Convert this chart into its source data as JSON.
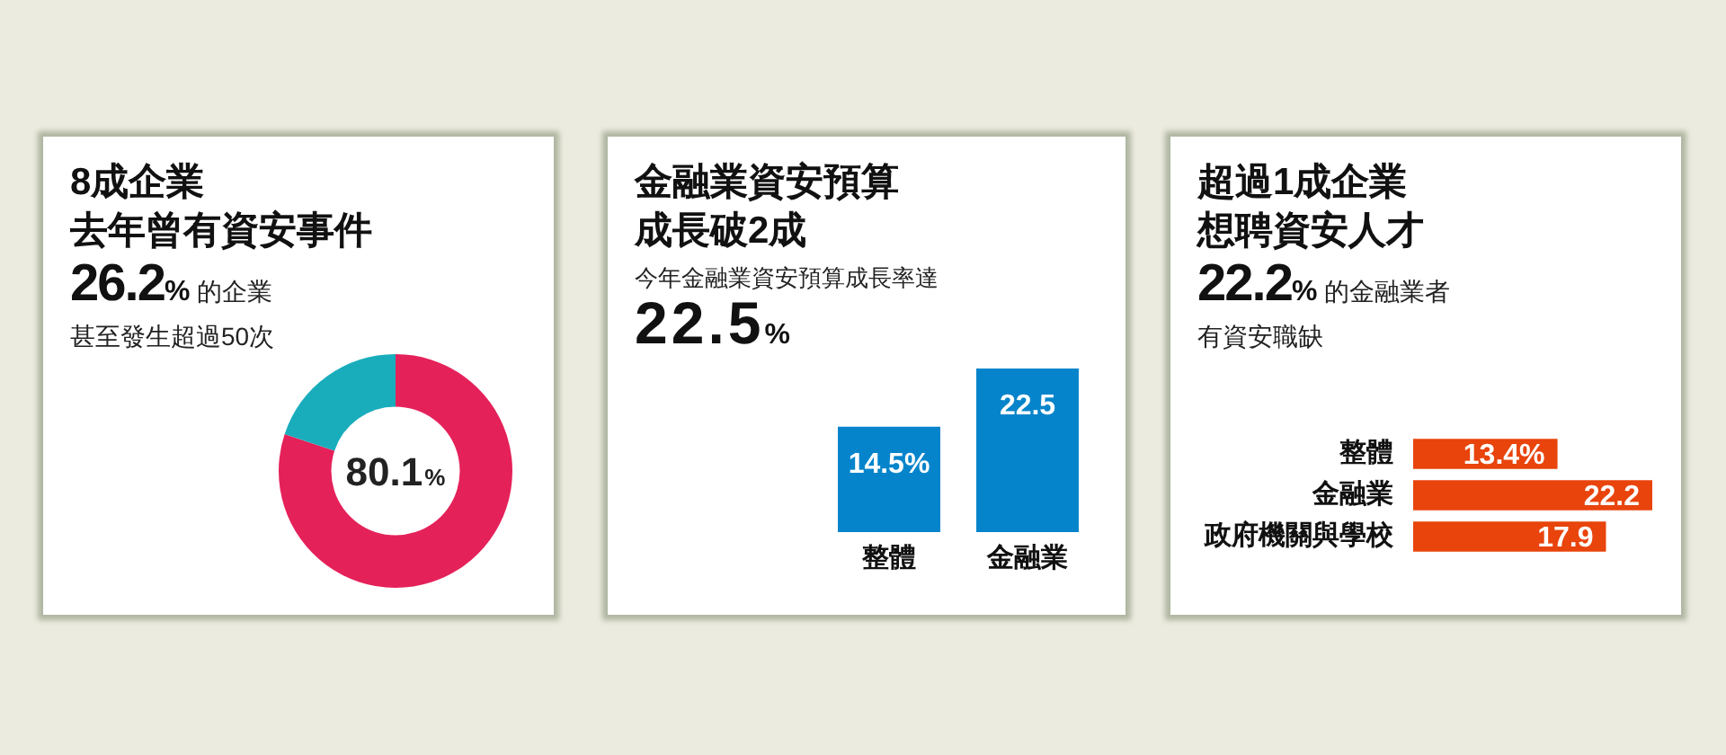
{
  "chart_data": [
    {
      "type": "donut",
      "title": "8成企業去年曾有資安事件",
      "subtitle": "26.2% 的企業",
      "annotations": [
        "甚至發生超過50次"
      ],
      "categories": [
        null,
        null
      ],
      "values": [
        80.1,
        19.9
      ],
      "colors": [
        "#e5215a",
        "#19adbc"
      ],
      "value_labels": [
        "80.1%",
        null
      ]
    },
    {
      "type": "bar",
      "title": "金融業資安預算成長破2成",
      "subtitle": "今年金融業資安預算成長率達",
      "annotations": [
        "22.5%"
      ],
      "categories": [
        "整體",
        "金融業"
      ],
      "values": [
        14.5,
        22.5
      ],
      "color": "#0584cb",
      "ylim": [
        0,
        22.5
      ],
      "value_labels": [
        "14.5%",
        "22.5"
      ],
      "tick_labels": "x"
    },
    {
      "type": "bar",
      "orientation": "horizontal",
      "title": "超過1成企業想聘資安人才",
      "subtitle": "22.2% 的金融業者",
      "annotations": [
        "有資安職缺"
      ],
      "categories": [
        "整體",
        "金融業",
        "政府機關與學校"
      ],
      "values": [
        13.4,
        22.2,
        17.9
      ],
      "color": "#e8440c",
      "xlim": [
        0,
        22.2
      ],
      "value_labels": [
        "13.4%",
        "22.2",
        "17.9"
      ],
      "tick_labels": "y"
    }
  ]
}
